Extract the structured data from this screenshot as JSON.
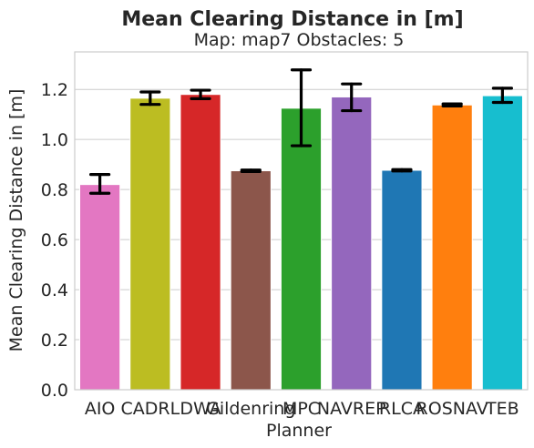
{
  "chart_data": {
    "type": "bar",
    "title": "Mean Clearing Distance in [m]",
    "subtitle": "Map: map7 Obstacles: 5",
    "xlabel": "Planner",
    "ylabel": "Mean Clearing Distance in [m]",
    "ylim": [
      0,
      1.35
    ],
    "yticks": [
      "0.0",
      "0.2",
      "0.4",
      "0.6",
      "0.8",
      "1.0",
      "1.2"
    ],
    "ytick_values": [
      0,
      0.2,
      0.4,
      0.6,
      0.8,
      1.0,
      1.2
    ],
    "grid": true,
    "categories": [
      "AIO",
      "CADRL",
      "DWA",
      "Gildenring",
      "MPC",
      "NAVREP",
      "RLCA",
      "ROSNAV",
      "TEB"
    ],
    "values": [
      0.82,
      1.165,
      1.18,
      0.875,
      1.125,
      1.17,
      0.877,
      1.138,
      1.175
    ],
    "error_low": [
      0.785,
      1.14,
      1.163,
      0.872,
      0.975,
      1.115,
      0.874,
      1.134,
      1.148
    ],
    "error_high": [
      0.86,
      1.19,
      1.197,
      0.878,
      1.278,
      1.222,
      0.88,
      1.142,
      1.205
    ],
    "colors": [
      "#e377c2",
      "#bcbd22",
      "#d62728",
      "#8c564b",
      "#2ca02c",
      "#9467bd",
      "#1f77b4",
      "#ff7f0e",
      "#17becf"
    ]
  }
}
